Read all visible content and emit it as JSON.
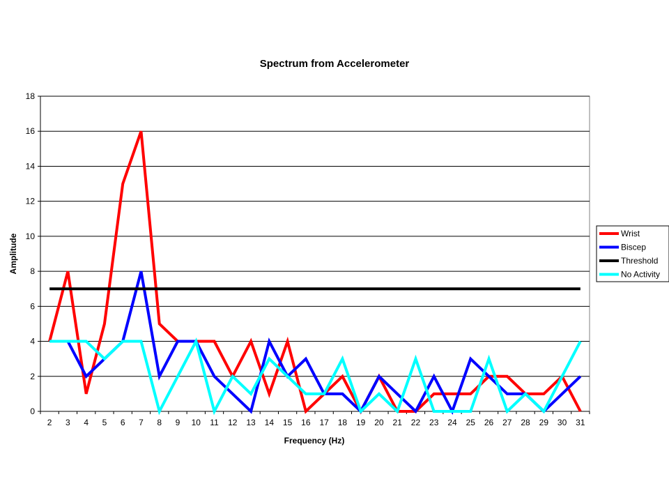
{
  "chart_data": {
    "type": "line",
    "title": "Spectrum from Accelerometer",
    "xlabel": "Frequency (Hz)",
    "ylabel": "Amplitude",
    "ylim": [
      0,
      18
    ],
    "y_ticks": [
      "0",
      "2",
      "4",
      "6",
      "8",
      "10",
      "12",
      "14",
      "16",
      "18"
    ],
    "grid": true,
    "legend_position": "right",
    "categories": [
      "2",
      "3",
      "4",
      "5",
      "6",
      "7",
      "8",
      "9",
      "10",
      "11",
      "12",
      "13",
      "14",
      "15",
      "16",
      "17",
      "18",
      "19",
      "20",
      "21",
      "22",
      "23",
      "24",
      "25",
      "26",
      "27",
      "28",
      "29",
      "30",
      "31"
    ],
    "series": [
      {
        "name": "Wrist",
        "color": "#ff0000",
        "values": [
          4,
          8,
          1,
          5,
          13,
          16,
          5,
          4,
          4,
          4,
          2,
          4,
          1,
          4,
          0,
          1,
          2,
          0,
          2,
          0,
          0,
          1,
          1,
          1,
          2,
          2,
          1,
          1,
          2,
          0
        ]
      },
      {
        "name": "Biscep",
        "color": "#0000ff",
        "values": [
          4,
          4,
          2,
          3,
          4,
          8,
          2,
          4,
          4,
          2,
          1,
          0,
          4,
          2,
          3,
          1,
          1,
          0,
          2,
          1,
          0,
          2,
          0,
          3,
          2,
          1,
          1,
          0,
          1,
          2
        ]
      },
      {
        "name": "Threshold",
        "color": "#000000",
        "values": [
          7,
          7,
          7,
          7,
          7,
          7,
          7,
          7,
          7,
          7,
          7,
          7,
          7,
          7,
          7,
          7,
          7,
          7,
          7,
          7,
          7,
          7,
          7,
          7,
          7,
          7,
          7,
          7,
          7,
          7
        ]
      },
      {
        "name": "No Activity",
        "color": "#00ffff",
        "values": [
          4,
          4,
          4,
          3,
          4,
          4,
          0,
          2,
          4,
          0,
          2,
          1,
          3,
          2,
          1,
          1,
          3,
          0,
          1,
          0,
          3,
          0,
          0,
          0,
          3,
          0,
          1,
          0,
          2,
          4
        ]
      }
    ]
  }
}
